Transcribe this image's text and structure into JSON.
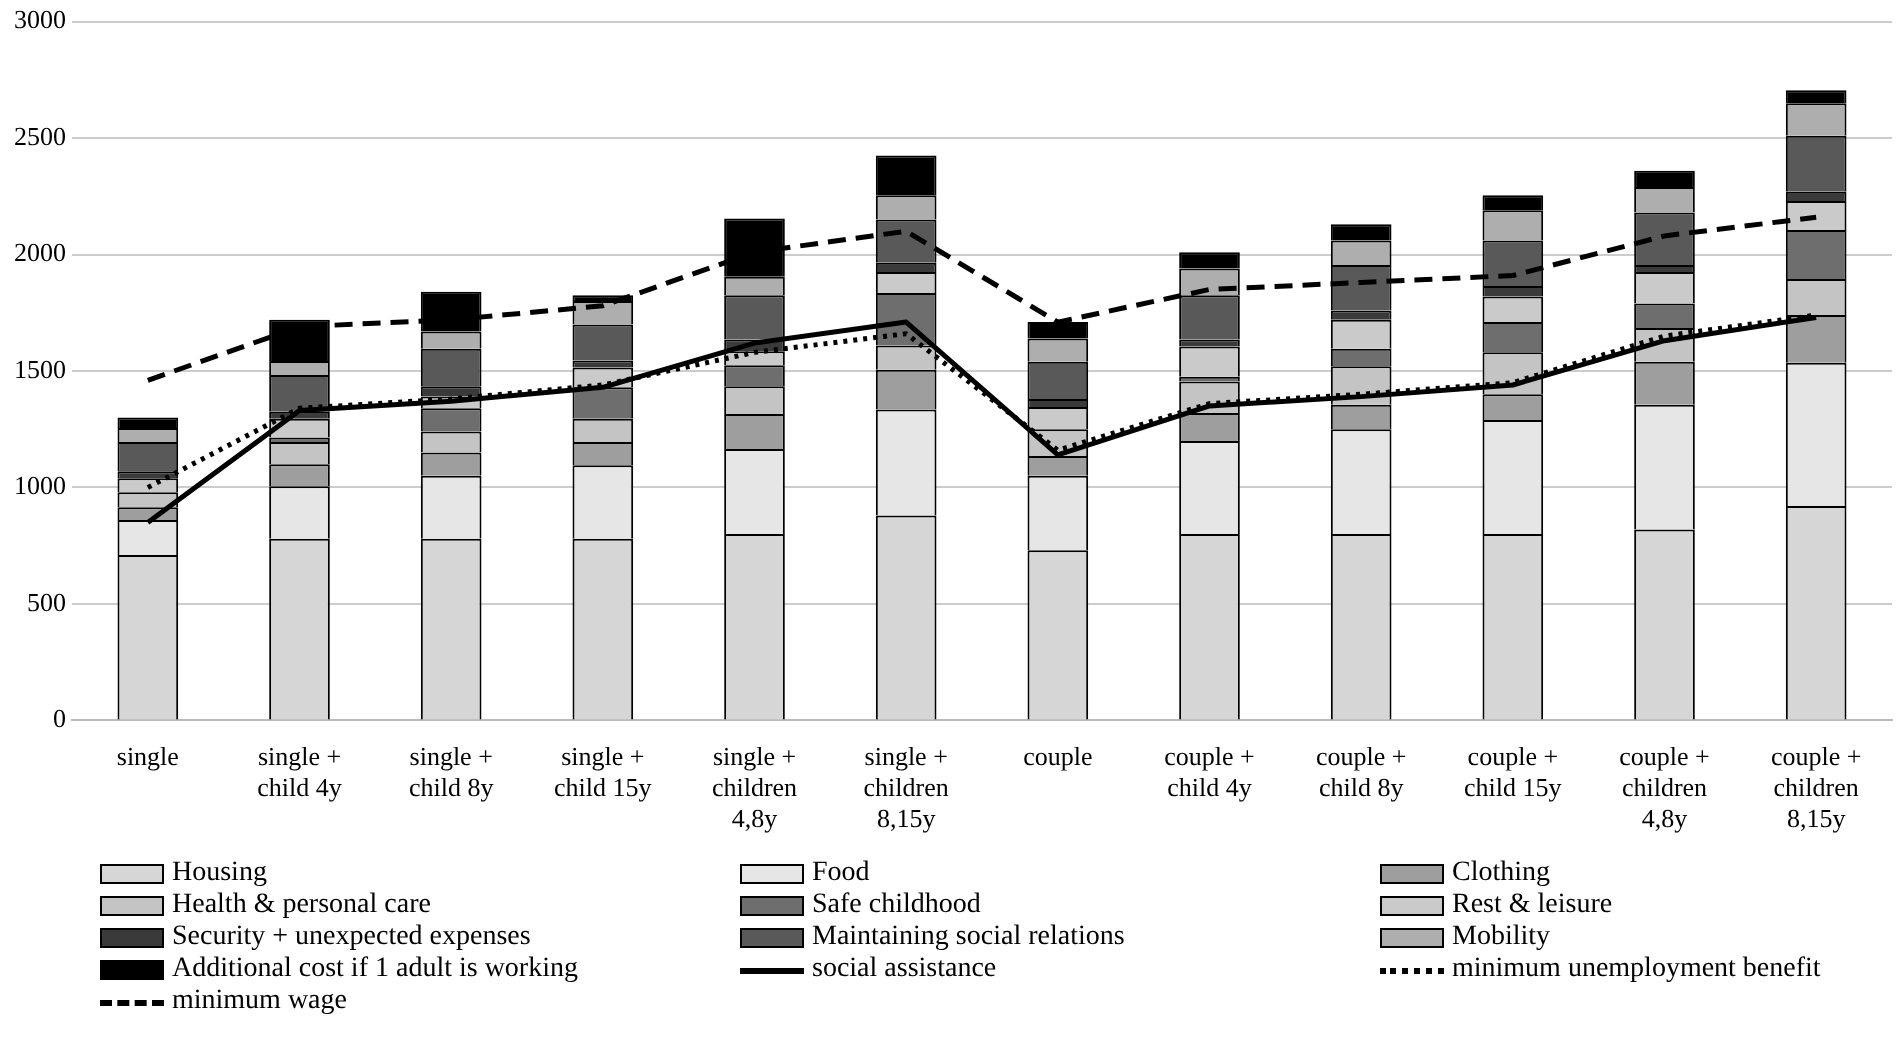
{
  "chart_data": {
    "type": "bar",
    "stacked": true,
    "categories": [
      "single",
      "single +\nchild 4y",
      "single +\nchild 8y",
      "single +\nchild 15y",
      "single +\nchildren\n4,8y",
      "single +\nchildren\n8,15y",
      "couple",
      "couple +\nchild 4y",
      "couple +\nchild 8y",
      "couple +\nchild 15y",
      "couple +\nchildren\n4,8y",
      "couple +\nchildren\n8,15y"
    ],
    "ylim": [
      0,
      3000
    ],
    "yticks": [
      0,
      500,
      1000,
      1500,
      2000,
      2500,
      3000
    ],
    "grid": "y",
    "legend": "bottom",
    "series": [
      {
        "name": "Housing",
        "color": "#d6d6d6",
        "values": [
          710,
          780,
          780,
          780,
          800,
          880,
          730,
          800,
          800,
          800,
          820,
          920
        ]
      },
      {
        "name": "Food",
        "color": "#e6e6e6",
        "values": [
          150,
          225,
          270,
          315,
          365,
          455,
          320,
          400,
          450,
          490,
          535,
          615
        ]
      },
      {
        "name": "Clothing",
        "color": "#9e9e9e",
        "values": [
          55,
          95,
          100,
          100,
          150,
          170,
          85,
          120,
          105,
          110,
          185,
          205
        ]
      },
      {
        "name": "Health & personal care",
        "color": "#c4c4c4",
        "values": [
          65,
          95,
          90,
          100,
          120,
          105,
          115,
          135,
          165,
          180,
          145,
          155
        ]
      },
      {
        "name": "Safe childhood",
        "color": "#6e6e6e",
        "values": [
          0,
          20,
          100,
          135,
          90,
          225,
          0,
          20,
          75,
          130,
          105,
          210
        ]
      },
      {
        "name": "Rest & leisure",
        "color": "#cacaca",
        "values": [
          60,
          80,
          50,
          85,
          60,
          90,
          95,
          130,
          125,
          110,
          135,
          125
        ]
      },
      {
        "name": "Security + unexpected expenses",
        "color": "#3a3a3a",
        "values": [
          30,
          30,
          45,
          30,
          50,
          40,
          35,
          30,
          40,
          45,
          30,
          40
        ]
      },
      {
        "name": "Maintaining social relations",
        "color": "#595959",
        "values": [
          125,
          158,
          160,
          155,
          190,
          185,
          160,
          190,
          195,
          195,
          225,
          240
        ]
      },
      {
        "name": "Mobility",
        "color": "#aeaeae",
        "values": [
          60,
          60,
          75,
          100,
          80,
          105,
          100,
          115,
          105,
          130,
          110,
          140
        ]
      },
      {
        "name": "Additional cost if 1 adult is working",
        "color": "#000000",
        "values": [
          45,
          177,
          170,
          25,
          250,
          170,
          70,
          70,
          70,
          65,
          70,
          55
        ]
      },
      {
        "name": "social assistance",
        "type": "line",
        "line_style": "solid",
        "color": "#000000",
        "values": [
          850,
          1330,
          1370,
          1430,
          1620,
          1710,
          1140,
          1350,
          1390,
          1440,
          1630,
          1730
        ]
      },
      {
        "name": "minimum unemployment benefit",
        "type": "line",
        "line_style": "dotted",
        "color": "#000000",
        "values": [
          1000,
          1340,
          1380,
          1440,
          1580,
          1660,
          1160,
          1360,
          1400,
          1450,
          1650,
          1740
        ]
      },
      {
        "name": "minimum wage",
        "type": "line",
        "line_style": "dashed",
        "color": "#000000",
        "values": [
          1460,
          1690,
          1720,
          1780,
          2010,
          2100,
          1710,
          1850,
          1880,
          1910,
          2080,
          2160
        ]
      }
    ]
  }
}
